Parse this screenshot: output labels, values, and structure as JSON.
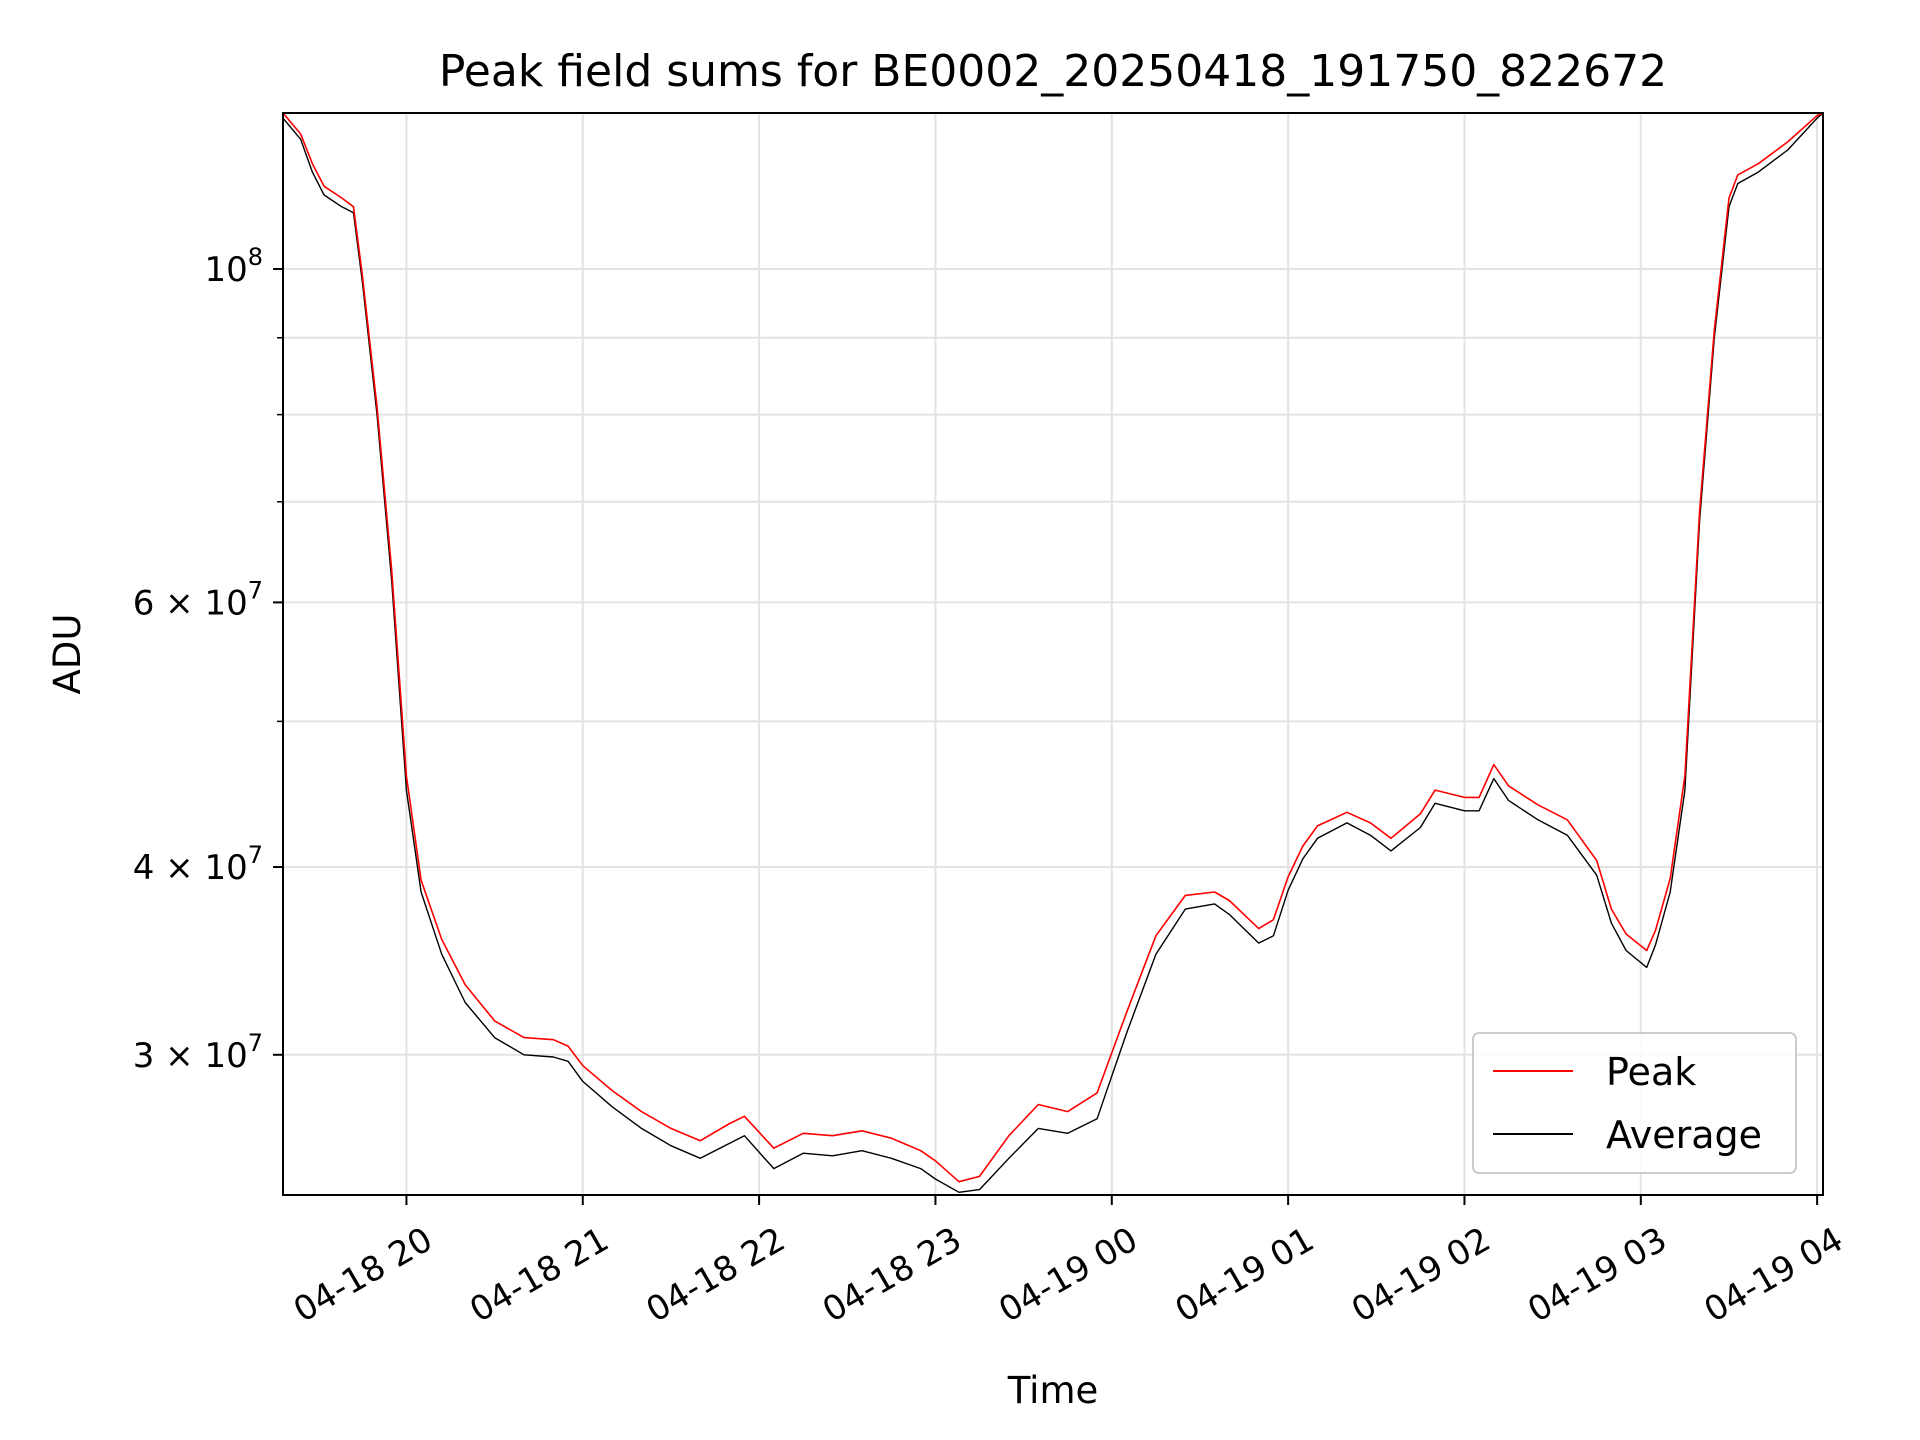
{
  "chart_data": {
    "type": "line",
    "title": "Peak field sums for BE0002_20250418_191750_822672",
    "xlabel": "Time",
    "ylabel": "ADU",
    "yscale": "log",
    "xlim": [
      "2025-04-18 19:18",
      "2025-04-19 04:02"
    ],
    "ylim": [
      24200000,
      127000000
    ],
    "grid": true,
    "legend_position": "lower-right",
    "x_ticks": [
      {
        "t": "2025-04-18 20:00",
        "label": "04-18 20"
      },
      {
        "t": "2025-04-18 21:00",
        "label": "04-18 21"
      },
      {
        "t": "2025-04-18 22:00",
        "label": "04-18 22"
      },
      {
        "t": "2025-04-18 23:00",
        "label": "04-18 23"
      },
      {
        "t": "2025-04-19 00:00",
        "label": "04-19 00"
      },
      {
        "t": "2025-04-19 01:00",
        "label": "04-19 01"
      },
      {
        "t": "2025-04-19 02:00",
        "label": "04-19 02"
      },
      {
        "t": "2025-04-19 03:00",
        "label": "04-19 03"
      },
      {
        "t": "2025-04-19 04:00",
        "label": "04-19 04"
      }
    ],
    "y_major_ticks": [
      {
        "value": 30000000,
        "base": "3 × 10",
        "exp": "7"
      },
      {
        "value": 40000000,
        "base": "4 × 10",
        "exp": "7"
      },
      {
        "value": 60000000,
        "base": "6 × 10",
        "exp": "7"
      },
      {
        "value": 100000000,
        "base": "10",
        "exp": "8"
      }
    ],
    "y_minor_ticks": [
      50000000,
      70000000,
      80000000,
      90000000
    ],
    "series": [
      {
        "name": "Average",
        "color": "#000000",
        "points": [
          [
            "2025-04-18 19:18",
            126000000
          ],
          [
            "2025-04-18 19:24",
            122000000
          ],
          [
            "2025-04-18 19:28",
            116000000
          ],
          [
            "2025-04-18 19:32",
            112000000
          ],
          [
            "2025-04-18 19:38",
            110000000
          ],
          [
            "2025-04-18 19:42",
            109000000
          ],
          [
            "2025-04-18 19:45",
            98000000
          ],
          [
            "2025-04-18 19:50",
            80000000
          ],
          [
            "2025-04-18 19:55",
            62000000
          ],
          [
            "2025-04-18 20:00",
            45000000
          ],
          [
            "2025-04-18 20:05",
            38500000
          ],
          [
            "2025-04-18 20:12",
            35000000
          ],
          [
            "2025-04-18 20:20",
            32500000
          ],
          [
            "2025-04-18 20:30",
            30800000
          ],
          [
            "2025-04-18 20:40",
            30000000
          ],
          [
            "2025-04-18 20:50",
            29900000
          ],
          [
            "2025-04-18 20:55",
            29700000
          ],
          [
            "2025-04-18 21:00",
            28800000
          ],
          [
            "2025-04-18 21:10",
            27700000
          ],
          [
            "2025-04-18 21:20",
            26800000
          ],
          [
            "2025-04-18 21:30",
            26100000
          ],
          [
            "2025-04-18 21:40",
            25600000
          ],
          [
            "2025-04-18 21:50",
            26200000
          ],
          [
            "2025-04-18 21:55",
            26500000
          ],
          [
            "2025-04-18 22:05",
            25200000
          ],
          [
            "2025-04-18 22:15",
            25800000
          ],
          [
            "2025-04-18 22:25",
            25700000
          ],
          [
            "2025-04-18 22:35",
            25900000
          ],
          [
            "2025-04-18 22:45",
            25600000
          ],
          [
            "2025-04-18 22:55",
            25200000
          ],
          [
            "2025-04-18 23:00",
            24800000
          ],
          [
            "2025-04-18 23:08",
            24300000
          ],
          [
            "2025-04-18 23:15",
            24400000
          ],
          [
            "2025-04-18 23:25",
            25600000
          ],
          [
            "2025-04-18 23:35",
            26800000
          ],
          [
            "2025-04-18 23:45",
            26600000
          ],
          [
            "2025-04-18 23:55",
            27200000
          ],
          [
            "2025-04-19 00:05",
            31000000
          ],
          [
            "2025-04-19 00:15",
            35000000
          ],
          [
            "2025-04-19 00:25",
            37500000
          ],
          [
            "2025-04-19 00:35",
            37800000
          ],
          [
            "2025-04-19 00:40",
            37200000
          ],
          [
            "2025-04-19 00:50",
            35600000
          ],
          [
            "2025-04-19 00:55",
            36000000
          ],
          [
            "2025-04-19 01:00",
            38600000
          ],
          [
            "2025-04-19 01:05",
            40500000
          ],
          [
            "2025-04-19 01:10",
            41800000
          ],
          [
            "2025-04-19 01:20",
            42800000
          ],
          [
            "2025-04-19 01:28",
            42000000
          ],
          [
            "2025-04-19 01:35",
            41000000
          ],
          [
            "2025-04-19 01:45",
            42500000
          ],
          [
            "2025-04-19 01:50",
            44100000
          ],
          [
            "2025-04-19 02:00",
            43600000
          ],
          [
            "2025-04-19 02:05",
            43600000
          ],
          [
            "2025-04-19 02:10",
            45800000
          ],
          [
            "2025-04-19 02:15",
            44300000
          ],
          [
            "2025-04-19 02:25",
            43000000
          ],
          [
            "2025-04-19 02:35",
            42000000
          ],
          [
            "2025-04-19 02:45",
            39500000
          ],
          [
            "2025-04-19 02:50",
            36700000
          ],
          [
            "2025-04-19 02:55",
            35200000
          ],
          [
            "2025-04-19 03:02",
            34300000
          ],
          [
            "2025-04-19 03:05",
            35500000
          ],
          [
            "2025-04-19 03:10",
            38500000
          ],
          [
            "2025-04-19 03:15",
            45000000
          ],
          [
            "2025-04-19 03:20",
            68000000
          ],
          [
            "2025-04-19 03:25",
            90000000
          ],
          [
            "2025-04-19 03:30",
            110000000
          ],
          [
            "2025-04-19 03:33",
            114000000
          ],
          [
            "2025-04-19 03:40",
            116000000
          ],
          [
            "2025-04-19 03:50",
            120000000
          ],
          [
            "2025-04-19 04:00",
            126000000
          ],
          [
            "2025-04-19 04:02",
            127000000
          ]
        ]
      },
      {
        "name": "Peak",
        "color": "#ff0000",
        "points": [
          [
            "2025-04-18 19:18",
            127000000
          ],
          [
            "2025-04-18 19:24",
            123000000
          ],
          [
            "2025-04-18 19:28",
            117500000
          ],
          [
            "2025-04-18 19:32",
            113500000
          ],
          [
            "2025-04-18 19:38",
            111500000
          ],
          [
            "2025-04-18 19:42",
            110000000
          ],
          [
            "2025-04-18 19:45",
            99000000
          ],
          [
            "2025-04-18 19:50",
            81000000
          ],
          [
            "2025-04-18 19:55",
            63000000
          ],
          [
            "2025-04-18 20:00",
            46000000
          ],
          [
            "2025-04-18 20:05",
            39200000
          ],
          [
            "2025-04-18 20:12",
            35800000
          ],
          [
            "2025-04-18 20:20",
            33400000
          ],
          [
            "2025-04-18 20:30",
            31600000
          ],
          [
            "2025-04-18 20:40",
            30800000
          ],
          [
            "2025-04-18 20:50",
            30700000
          ],
          [
            "2025-04-18 20:55",
            30400000
          ],
          [
            "2025-04-18 21:00",
            29500000
          ],
          [
            "2025-04-18 21:10",
            28400000
          ],
          [
            "2025-04-18 21:20",
            27500000
          ],
          [
            "2025-04-18 21:30",
            26800000
          ],
          [
            "2025-04-18 21:40",
            26300000
          ],
          [
            "2025-04-18 21:50",
            27000000
          ],
          [
            "2025-04-18 21:55",
            27300000
          ],
          [
            "2025-04-18 22:05",
            26000000
          ],
          [
            "2025-04-18 22:15",
            26600000
          ],
          [
            "2025-04-18 22:25",
            26500000
          ],
          [
            "2025-04-18 22:35",
            26700000
          ],
          [
            "2025-04-18 22:45",
            26400000
          ],
          [
            "2025-04-18 22:55",
            25900000
          ],
          [
            "2025-04-18 23:00",
            25500000
          ],
          [
            "2025-04-18 23:08",
            24700000
          ],
          [
            "2025-04-18 23:15",
            24900000
          ],
          [
            "2025-04-18 23:25",
            26500000
          ],
          [
            "2025-04-18 23:35",
            27800000
          ],
          [
            "2025-04-18 23:45",
            27500000
          ],
          [
            "2025-04-18 23:55",
            28300000
          ],
          [
            "2025-04-19 00:05",
            32000000
          ],
          [
            "2025-04-19 00:15",
            36000000
          ],
          [
            "2025-04-19 00:25",
            38300000
          ],
          [
            "2025-04-19 00:35",
            38500000
          ],
          [
            "2025-04-19 00:40",
            38000000
          ],
          [
            "2025-04-19 00:50",
            36400000
          ],
          [
            "2025-04-19 00:55",
            36900000
          ],
          [
            "2025-04-19 01:00",
            39400000
          ],
          [
            "2025-04-19 01:05",
            41300000
          ],
          [
            "2025-04-19 01:10",
            42600000
          ],
          [
            "2025-04-19 01:20",
            43500000
          ],
          [
            "2025-04-19 01:28",
            42800000
          ],
          [
            "2025-04-19 01:35",
            41800000
          ],
          [
            "2025-04-19 01:45",
            43400000
          ],
          [
            "2025-04-19 01:50",
            45000000
          ],
          [
            "2025-04-19 02:00",
            44500000
          ],
          [
            "2025-04-19 02:05",
            44500000
          ],
          [
            "2025-04-19 02:10",
            46800000
          ],
          [
            "2025-04-19 02:15",
            45300000
          ],
          [
            "2025-04-19 02:25",
            44000000
          ],
          [
            "2025-04-19 02:35",
            43000000
          ],
          [
            "2025-04-19 02:45",
            40400000
          ],
          [
            "2025-04-19 02:50",
            37500000
          ],
          [
            "2025-04-19 02:55",
            36100000
          ],
          [
            "2025-04-19 03:02",
            35200000
          ],
          [
            "2025-04-19 03:05",
            36300000
          ],
          [
            "2025-04-19 03:10",
            39300000
          ],
          [
            "2025-04-19 03:15",
            46000000
          ],
          [
            "2025-04-19 03:20",
            69000000
          ],
          [
            "2025-04-19 03:25",
            91000000
          ],
          [
            "2025-04-19 03:30",
            111500000
          ],
          [
            "2025-04-19 03:33",
            115500000
          ],
          [
            "2025-04-19 03:40",
            117500000
          ],
          [
            "2025-04-19 03:50",
            121500000
          ],
          [
            "2025-04-19 04:00",
            126500000
          ],
          [
            "2025-04-19 04:02",
            127000000
          ]
        ]
      }
    ],
    "legend": [
      {
        "label": "Peak",
        "color": "#ff0000"
      },
      {
        "label": "Average",
        "color": "#000000"
      }
    ]
  }
}
